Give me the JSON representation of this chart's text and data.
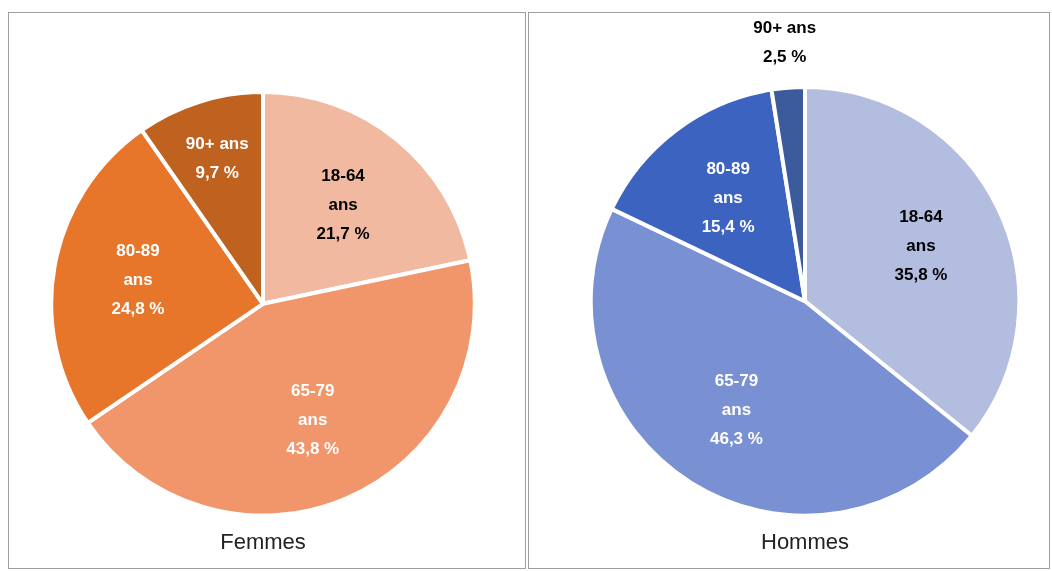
{
  "chart_data": [
    {
      "type": "pie",
      "title": "Femmes",
      "categories": [
        "18-64 ans",
        "65-79 ans",
        "80-89 ans",
        "90+ ans"
      ],
      "values": [
        21.7,
        43.8,
        24.8,
        9.7
      ],
      "value_labels": [
        "21,7 %",
        "43,8 %",
        "24,8 %",
        "9,7 %"
      ],
      "colors": [
        "#f0b9a0",
        "#f1956a",
        "#e7762a",
        "#bf611f"
      ]
    },
    {
      "type": "pie",
      "title": "Hommes",
      "categories": [
        "18-64 ans",
        "65-79 ans",
        "80-89 ans",
        "90+ ans"
      ],
      "values": [
        35.8,
        46.3,
        15.4,
        2.5
      ],
      "value_labels": [
        "35,8 %",
        "46,3 %",
        "15,4 %",
        "2,5 %"
      ],
      "colors": [
        "#b2bde0",
        "#7991d2",
        "#3c63bf",
        "#3b5b9c"
      ]
    }
  ]
}
